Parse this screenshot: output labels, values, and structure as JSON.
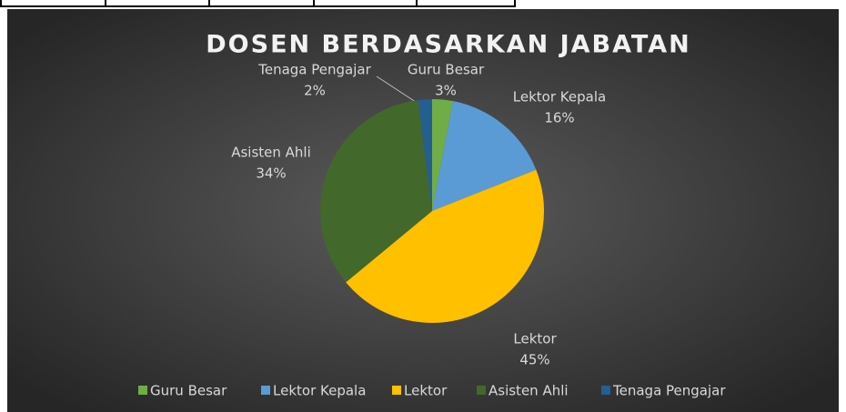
{
  "chart_data": {
    "type": "pie",
    "title": "DOSEN BERDASARKAN JABATAN",
    "categories": [
      "Guru Besar",
      "Lektor Kepala",
      "Lektor",
      "Asisten Ahli",
      "Tenaga Pengajar"
    ],
    "values": [
      3,
      16,
      45,
      34,
      2
    ],
    "value_labels": [
      "3%",
      "16%",
      "45%",
      "34%",
      "2%"
    ],
    "colors": [
      "#70ad47",
      "#5b9bd5",
      "#ffc000",
      "#43682b",
      "#255e91"
    ],
    "legend": "bottom"
  }
}
